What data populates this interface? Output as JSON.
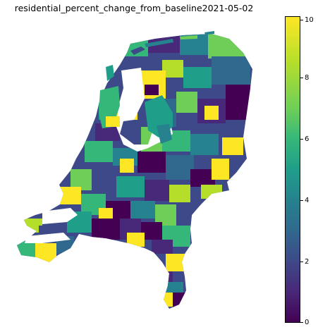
{
  "title": "residential_percent_change_from_baseline2021-05-02",
  "colorbar": {
    "ticks": [
      "0",
      "2",
      "4",
      "6",
      "8",
      "10"
    ],
    "min": 0,
    "max": 10,
    "colormap": "viridis",
    "colors": [
      "#440154",
      "#3e4989",
      "#26828e",
      "#35b779",
      "#b5de2b",
      "#fde725"
    ]
  }
}
